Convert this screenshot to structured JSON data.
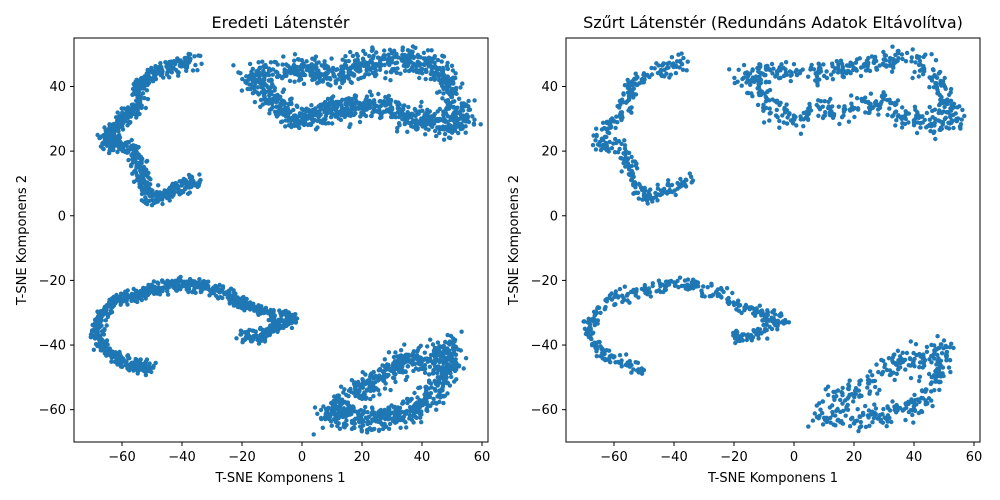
{
  "colors": {
    "point": "#1f77b4",
    "axis": "#000000",
    "background": "#ffffff"
  },
  "chart_data": [
    {
      "type": "scatter",
      "title": "Eredeti Látenstér",
      "xlabel": "T-SNE Komponens 1",
      "ylabel": "T-SNE Komponens 2",
      "xlim": [
        -76,
        62
      ],
      "ylim": [
        -70,
        55
      ],
      "xticks": [
        -60,
        -40,
        -20,
        0,
        20,
        40,
        60
      ],
      "yticks": [
        -60,
        -40,
        -20,
        0,
        20,
        40
      ],
      "xtick_labels": [
        "−60",
        "−40",
        "−20",
        "0",
        "20",
        "40",
        "60"
      ],
      "ytick_labels": [
        "−60",
        "−40",
        "−20",
        "0",
        "20",
        "40"
      ],
      "grid": false,
      "marker_size": 2.2,
      "clusters": [
        {
          "cluster": "upper-left arc",
          "path": [
            [
              -35,
              11
            ],
            [
              -43,
              8
            ],
            [
              -50,
              5
            ],
            [
              -53,
              11
            ],
            [
              -55,
              17
            ],
            [
              -57,
              21
            ],
            [
              -63,
              22
            ],
            [
              -66,
              24
            ],
            [
              -60,
              29
            ],
            [
              -56,
              33
            ],
            [
              -54,
              38
            ],
            [
              -55,
              40
            ],
            [
              -51,
              43
            ],
            [
              -46,
              45
            ],
            [
              -40,
              47
            ],
            [
              -36,
              48
            ]
          ],
          "spread": 2.2,
          "points": 700
        },
        {
          "cluster": "upper-right block",
          "path": [
            [
              -20,
              43
            ],
            [
              -12,
              43
            ],
            [
              -5,
              45
            ],
            [
              2,
              45
            ],
            [
              10,
              44
            ],
            [
              18,
              46
            ],
            [
              25,
              47
            ],
            [
              32,
              48
            ],
            [
              40,
              48
            ],
            [
              45,
              46
            ],
            [
              48,
              42
            ],
            [
              50,
              37
            ],
            [
              52,
              33
            ],
            [
              55,
              30
            ],
            [
              50,
              28
            ],
            [
              45,
              29
            ],
            [
              40,
              31
            ],
            [
              36,
              29
            ],
            [
              32,
              33
            ],
            [
              28,
              34
            ],
            [
              22,
              34
            ],
            [
              15,
              32
            ],
            [
              10,
              34
            ],
            [
              5,
              31
            ],
            [
              0,
              30
            ],
            [
              -5,
              32
            ],
            [
              -10,
              36
            ],
            [
              -15,
              38
            ]
          ],
          "spread": 3.5,
          "points": 1300
        },
        {
          "cluster": "lower-left arc",
          "path": [
            [
              -50,
              -48
            ],
            [
              -55,
              -46
            ],
            [
              -62,
              -44
            ],
            [
              -67,
              -40
            ],
            [
              -69,
              -36
            ],
            [
              -66,
              -30
            ],
            [
              -62,
              -26
            ],
            [
              -56,
              -25
            ],
            [
              -50,
              -23
            ],
            [
              -44,
              -22
            ],
            [
              -38,
              -21
            ],
            [
              -32,
              -22
            ],
            [
              -25,
              -24
            ],
            [
              -20,
              -27
            ],
            [
              -15,
              -29
            ],
            [
              -10,
              -31
            ],
            [
              -5,
              -31
            ],
            [
              -3,
              -32
            ],
            [
              -8,
              -34
            ],
            [
              -14,
              -37
            ],
            [
              -18,
              -38
            ],
            [
              -20,
              -36
            ]
          ],
          "spread": 1.8,
          "points": 900
        },
        {
          "cluster": "lower-right block",
          "path": [
            [
              8,
              -63
            ],
            [
              12,
              -58
            ],
            [
              18,
              -54
            ],
            [
              25,
              -52
            ],
            [
              30,
              -48
            ],
            [
              35,
              -44
            ],
            [
              40,
              -45
            ],
            [
              45,
              -43
            ],
            [
              50,
              -40
            ],
            [
              48,
              -48
            ],
            [
              45,
              -55
            ],
            [
              40,
              -58
            ],
            [
              35,
              -61
            ],
            [
              30,
              -62
            ],
            [
              25,
              -63
            ],
            [
              20,
              -63
            ],
            [
              15,
              -62
            ],
            [
              10,
              -61
            ]
          ],
          "spread": 3.5,
          "points": 800
        }
      ]
    },
    {
      "type": "scatter",
      "title": "Szűrt Látenstér (Redundáns Adatok Eltávolítva)",
      "xlabel": "T-SNE Komponens 1",
      "ylabel": "T-SNE Komponens 2",
      "xlim": [
        -76,
        62
      ],
      "ylim": [
        -70,
        55
      ],
      "xticks": [
        -60,
        -40,
        -20,
        0,
        20,
        40,
        60
      ],
      "yticks": [
        -60,
        -40,
        -20,
        0,
        20,
        40
      ],
      "xtick_labels": [
        "−60",
        "−40",
        "−20",
        "0",
        "20",
        "40",
        "60"
      ],
      "ytick_labels": [
        "−60",
        "−40",
        "−20",
        "0",
        "20",
        "40"
      ],
      "grid": false,
      "marker_size": 2.2,
      "clusters": [
        {
          "cluster": "upper-left arc",
          "path": [
            [
              -35,
              11
            ],
            [
              -43,
              8
            ],
            [
              -50,
              5
            ],
            [
              -53,
              11
            ],
            [
              -55,
              17
            ],
            [
              -57,
              21
            ],
            [
              -63,
              22
            ],
            [
              -66,
              24
            ],
            [
              -60,
              29
            ],
            [
              -56,
              33
            ],
            [
              -54,
              38
            ],
            [
              -55,
              40
            ],
            [
              -51,
              43
            ],
            [
              -46,
              45
            ],
            [
              -40,
              47
            ],
            [
              -36,
              48
            ]
          ],
          "spread": 2.2,
          "points": 300
        },
        {
          "cluster": "upper-right block",
          "path": [
            [
              -20,
              43
            ],
            [
              -12,
              43
            ],
            [
              -5,
              45
            ],
            [
              2,
              45
            ],
            [
              10,
              44
            ],
            [
              18,
              46
            ],
            [
              25,
              47
            ],
            [
              32,
              48
            ],
            [
              40,
              48
            ],
            [
              45,
              46
            ],
            [
              48,
              42
            ],
            [
              50,
              37
            ],
            [
              52,
              33
            ],
            [
              55,
              30
            ],
            [
              50,
              28
            ],
            [
              45,
              29
            ],
            [
              40,
              31
            ],
            [
              36,
              29
            ],
            [
              32,
              33
            ],
            [
              28,
              34
            ],
            [
              22,
              34
            ],
            [
              15,
              32
            ],
            [
              10,
              34
            ],
            [
              5,
              31
            ],
            [
              0,
              30
            ],
            [
              -5,
              32
            ],
            [
              -10,
              36
            ],
            [
              -15,
              38
            ]
          ],
          "spread": 3.5,
          "points": 560
        },
        {
          "cluster": "lower-left arc",
          "path": [
            [
              -50,
              -48
            ],
            [
              -55,
              -46
            ],
            [
              -62,
              -44
            ],
            [
              -67,
              -40
            ],
            [
              -69,
              -36
            ],
            [
              -66,
              -30
            ],
            [
              -62,
              -26
            ],
            [
              -56,
              -25
            ],
            [
              -50,
              -23
            ],
            [
              -44,
              -22
            ],
            [
              -38,
              -21
            ],
            [
              -32,
              -22
            ],
            [
              -25,
              -24
            ],
            [
              -20,
              -27
            ],
            [
              -15,
              -29
            ],
            [
              -10,
              -31
            ],
            [
              -5,
              -31
            ],
            [
              -3,
              -32
            ],
            [
              -8,
              -34
            ],
            [
              -14,
              -37
            ],
            [
              -18,
              -38
            ],
            [
              -20,
              -36
            ]
          ],
          "spread": 1.8,
          "points": 380
        },
        {
          "cluster": "lower-right block",
          "path": [
            [
              8,
              -63
            ],
            [
              12,
              -58
            ],
            [
              18,
              -54
            ],
            [
              25,
              -52
            ],
            [
              30,
              -48
            ],
            [
              35,
              -44
            ],
            [
              40,
              -45
            ],
            [
              45,
              -43
            ],
            [
              50,
              -40
            ],
            [
              48,
              -48
            ],
            [
              45,
              -55
            ],
            [
              40,
              -58
            ],
            [
              35,
              -61
            ],
            [
              30,
              -62
            ],
            [
              25,
              -63
            ],
            [
              20,
              -63
            ],
            [
              15,
              -62
            ],
            [
              10,
              -61
            ]
          ],
          "spread": 3.5,
          "points": 340
        }
      ]
    }
  ]
}
